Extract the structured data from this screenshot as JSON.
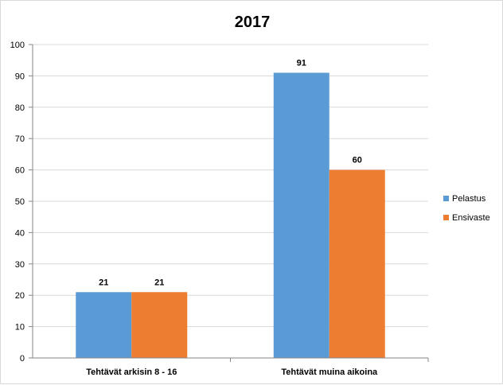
{
  "chart_data": {
    "type": "bar",
    "title": "2017",
    "categories": [
      "Tehtävät arkisin 8 - 16",
      "Tehtävät muina aikoina"
    ],
    "series": [
      {
        "name": "Pelastus",
        "values": [
          21,
          91
        ],
        "color": "#5b9bd5"
      },
      {
        "name": "Ensivaste",
        "values": [
          21,
          60
        ],
        "color": "#ed7d31"
      }
    ],
    "ylim": [
      0,
      100
    ],
    "yticks": [
      0,
      10,
      20,
      30,
      40,
      50,
      60,
      70,
      80,
      90,
      100
    ],
    "grid": true,
    "legend": "right",
    "data_labels": true
  }
}
